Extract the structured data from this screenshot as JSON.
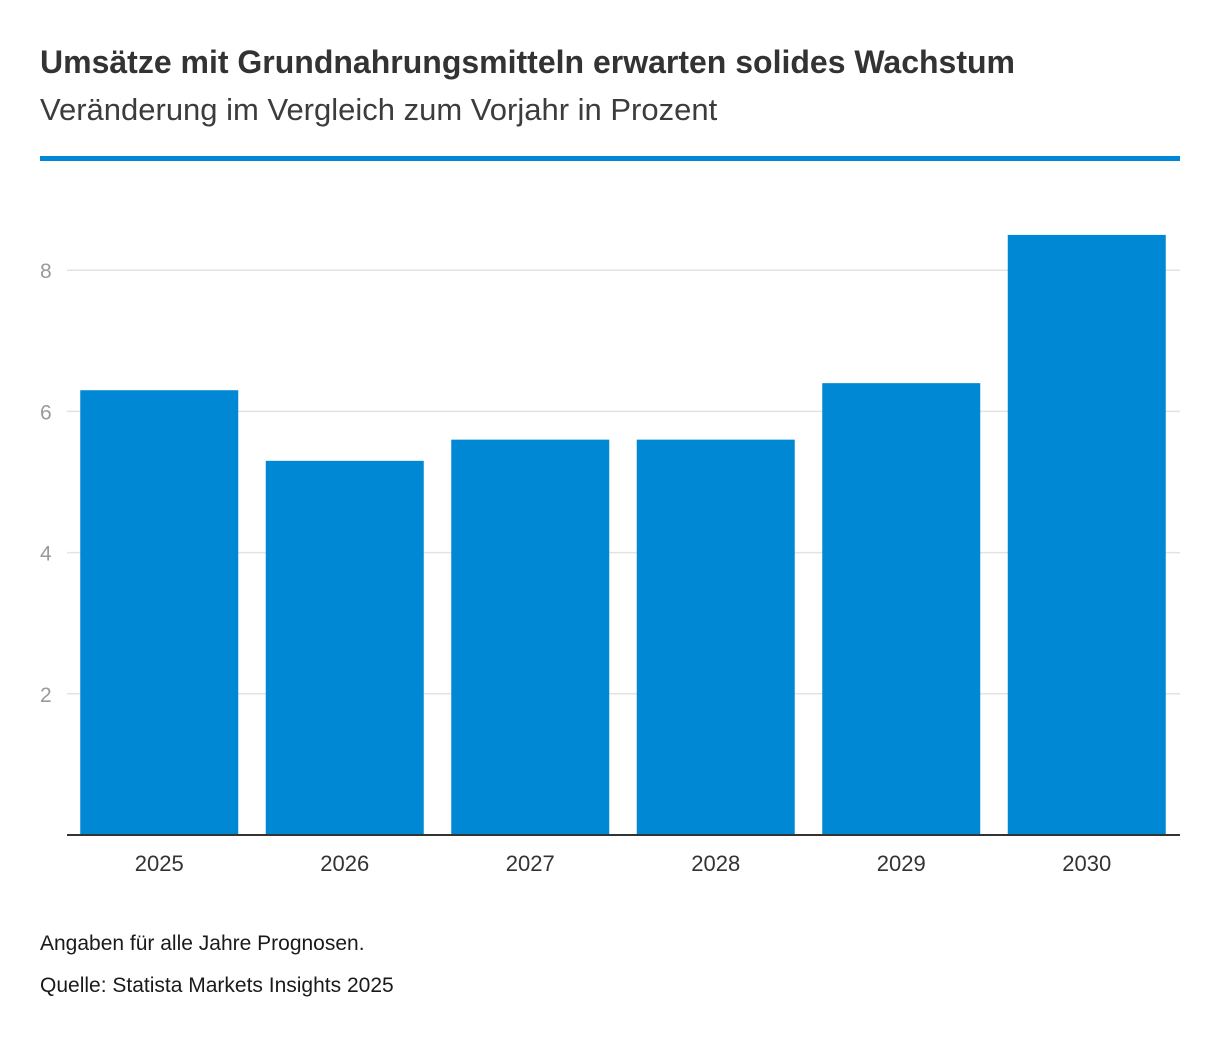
{
  "header": {
    "title": "Umsätze mit Grundnahrungsmitteln erwarten solides Wachstum",
    "subtitle": "Veränderung im Vergleich zum Vorjahr in Prozent"
  },
  "colors": {
    "accent": "#0088d4",
    "bar": "#0088d4",
    "grid": "#e3e3e3",
    "axis": "#333333",
    "tick_label": "#9a9a9a",
    "category_label": "#333333"
  },
  "chart_data": {
    "type": "bar",
    "title": "Umsätze mit Grundnahrungsmitteln erwarten solides Wachstum",
    "subtitle": "Veränderung im Vergleich zum Vorjahr in Prozent",
    "categories": [
      "2025",
      "2026",
      "2027",
      "2028",
      "2029",
      "2030"
    ],
    "values": [
      6.3,
      5.3,
      5.6,
      5.6,
      6.4,
      8.5
    ],
    "xlabel": "",
    "ylabel": "",
    "ylim": [
      0,
      8.5
    ],
    "yticks": [
      2,
      4,
      6,
      8
    ],
    "ytick_labels": [
      "2",
      "4",
      "6",
      "8"
    ],
    "grid": true,
    "legend": "none"
  },
  "footer": {
    "note": "Angaben für alle Jahre Prognosen.",
    "source": "Quelle: Statista Markets Insights 2025"
  }
}
